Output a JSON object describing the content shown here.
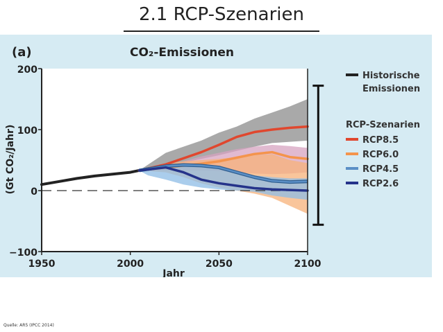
{
  "slide": {
    "title": "2.1 RCP-Szenarien",
    "source": "Quelle: AR5 (IPCC 2014)"
  },
  "chart_data": {
    "type": "line",
    "panel_label": "(a)",
    "title": "CO₂-Emissionen",
    "xlabel": "Jahr",
    "ylabel": "(Gt CO₂/Jahr)",
    "xlim": [
      1950,
      2100
    ],
    "ylim": [
      -100,
      200
    ],
    "xticks": [
      1950,
      2000,
      2050,
      2100
    ],
    "yticks": [
      -100,
      0,
      100,
      200
    ],
    "zero_line": "dashed",
    "grid": false,
    "legend_position": "right",
    "legend": {
      "historic_label": [
        "Historische",
        "Emissionen"
      ],
      "scenario_heading": "RCP-Szenarien",
      "entries": [
        "RCP8.5",
        "RCP6.0",
        "RCP4.5",
        "RCP2.6"
      ]
    },
    "colors": {
      "historic": "#222222",
      "rcp85": "#e0472e",
      "rcp60": "#f4944c",
      "rcp45": "#5b8fc6",
      "rcp26": "#25338a",
      "band_gray": "#9a9a9a",
      "band_pink": "#d7a3c0",
      "band_orange": "#f7b27a",
      "band_blue": "#8dbce6",
      "panel_bg": "#d6ebf3",
      "plot_bg": "#ffffff"
    },
    "series": [
      {
        "name": "Historische Emissionen",
        "key": "historic",
        "x": [
          1950,
          1960,
          1970,
          1980,
          1990,
          2000,
          2005,
          2010
        ],
        "y": [
          10,
          15,
          20,
          24,
          27,
          30,
          33,
          36
        ]
      },
      {
        "name": "RCP8.5",
        "key": "rcp85",
        "x": [
          2005,
          2020,
          2030,
          2040,
          2050,
          2060,
          2070,
          2080,
          2090,
          2100
        ],
        "y": [
          33,
          43,
          53,
          63,
          75,
          88,
          96,
          100,
          103,
          105
        ]
      },
      {
        "name": "RCP6.0",
        "key": "rcp60",
        "x": [
          2005,
          2020,
          2030,
          2040,
          2050,
          2060,
          2070,
          2080,
          2090,
          2100
        ],
        "y": [
          33,
          38,
          41,
          44,
          48,
          54,
          60,
          63,
          55,
          52
        ]
      },
      {
        "name": "RCP4.5",
        "key": "rcp45",
        "x": [
          2005,
          2020,
          2030,
          2040,
          2050,
          2060,
          2070,
          2080,
          2090,
          2100
        ],
        "y": [
          33,
          40,
          42,
          41,
          38,
          30,
          22,
          16,
          14,
          15
        ]
      },
      {
        "name": "RCP2.6",
        "key": "rcp26",
        "x": [
          2005,
          2020,
          2030,
          2040,
          2050,
          2060,
          2070,
          2080,
          2090,
          2100
        ],
        "y": [
          33,
          38,
          30,
          18,
          12,
          8,
          4,
          2,
          1,
          0
        ]
      }
    ],
    "bands": [
      {
        "key": "band_gray",
        "x": [
          2005,
          2020,
          2030,
          2040,
          2050,
          2060,
          2070,
          2080,
          2090,
          2100
        ],
        "upper": [
          33,
          62,
          72,
          82,
          95,
          105,
          118,
          128,
          138,
          150
        ],
        "lower": [
          33,
          40,
          46,
          52,
          58,
          65,
          72,
          78,
          80,
          82
        ]
      },
      {
        "key": "band_pink",
        "x": [
          2005,
          2020,
          2030,
          2040,
          2050,
          2060,
          2070,
          2080,
          2090,
          2100
        ],
        "upper": [
          33,
          40,
          48,
          56,
          62,
          68,
          72,
          75,
          73,
          70
        ],
        "lower": [
          33,
          33,
          33,
          33,
          32,
          30,
          28,
          27,
          28,
          30
        ]
      },
      {
        "key": "band_orange",
        "x": [
          2005,
          2020,
          2030,
          2040,
          2050,
          2060,
          2070,
          2080,
          2090,
          2100
        ],
        "upper": [
          33,
          44,
          48,
          50,
          52,
          55,
          58,
          60,
          50,
          45
        ],
        "lower": [
          33,
          30,
          22,
          12,
          5,
          0,
          -5,
          -12,
          -25,
          -38
        ]
      },
      {
        "key": "band_blue",
        "x": [
          2005,
          2010,
          2020,
          2030,
          2040,
          2050,
          2060,
          2070,
          2080,
          2090,
          2100
        ],
        "upper": [
          33,
          38,
          42,
          42,
          40,
          36,
          30,
          25,
          22,
          20,
          20
        ],
        "lower": [
          33,
          25,
          18,
          10,
          5,
          2,
          0,
          -2,
          -8,
          -12,
          -15
        ]
      }
    ],
    "range_bar": {
      "x": 2106,
      "top": 172,
      "bottom": -56
    }
  }
}
